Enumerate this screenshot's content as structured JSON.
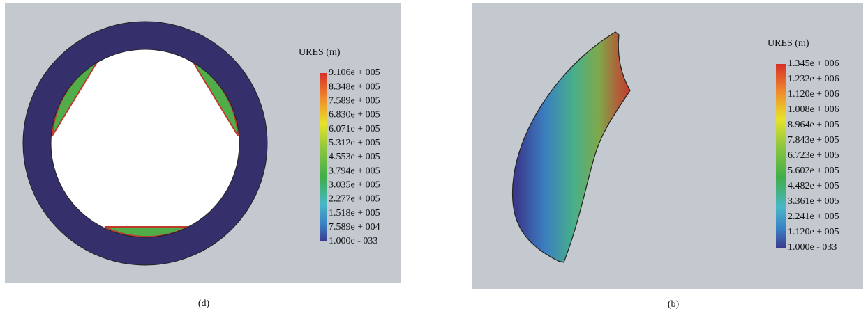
{
  "panels": [
    {
      "caption": "(d)",
      "legend_title": "URES (m)",
      "legend_labels": [
        "9.106e + 005",
        "8.348e + 005",
        "7.589e + 005",
        "6.830e + 005",
        "6.071e + 005",
        "5.312e + 005",
        "4.553e + 005",
        "3.794e + 005",
        "3.035e + 005",
        "2.277e + 005",
        "1.518e + 005",
        "7.589e + 004",
        "1.000e - 033"
      ]
    },
    {
      "caption": "(b)",
      "legend_title": "URES (m)",
      "legend_labels": [
        "1.345e + 006",
        "1.232e + 006",
        "1.120e + 006",
        "1.008e + 006",
        "8.964e + 005",
        "7.843e + 005",
        "6.723e + 005",
        "5.602e + 005",
        "4.482e + 005",
        "3.361e + 005",
        "2.241e + 005",
        "1.120e + 005",
        "1.000e - 033"
      ]
    }
  ]
}
